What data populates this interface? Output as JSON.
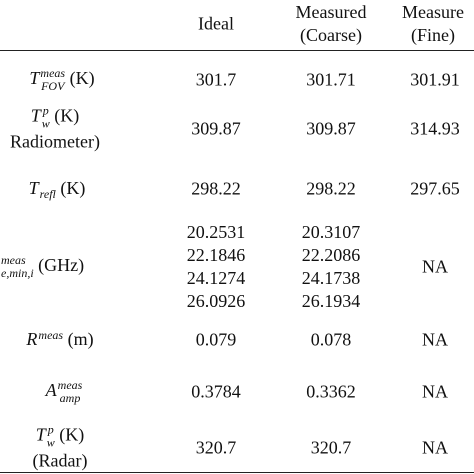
{
  "table": {
    "columns": [
      "Ideal",
      [
        "Measured",
        "(Coarse)"
      ],
      [
        "Measure",
        "(Fine)"
      ]
    ],
    "rows": [
      {
        "label": {
          "base": "T",
          "sup": "meas",
          "sub": "FOV",
          "unit": "(K)"
        },
        "cells": [
          [
            "301.7"
          ],
          [
            "301.71"
          ],
          [
            "301.91"
          ]
        ]
      },
      {
        "label": {
          "base": "T",
          "sup": "p",
          "sub": "w",
          "unit": "(K)",
          "note": "Radiometer)"
        },
        "cells": [
          [
            "309.87"
          ],
          [
            "309.87"
          ],
          [
            "314.93"
          ]
        ]
      },
      {
        "label": {
          "base": "T",
          "sub": "refl",
          "unit": "(K)"
        },
        "cells": [
          [
            "298.22"
          ],
          [
            "298.22"
          ],
          [
            "297.65"
          ]
        ]
      },
      {
        "label": {
          "sup": "meas",
          "sub": "e,min,i",
          "unit": "(GHz)"
        },
        "cells": [
          [
            "20.2531",
            "22.1846",
            "24.1274",
            "26.0926"
          ],
          [
            "20.3107",
            "22.2086",
            "24.1738",
            "26.1934"
          ],
          [
            "NA"
          ]
        ]
      },
      {
        "label": {
          "base": "R",
          "sup": "meas",
          "unit": "(m)"
        },
        "cells": [
          [
            "0.079"
          ],
          [
            "0.078"
          ],
          [
            "NA"
          ]
        ]
      },
      {
        "label": {
          "base": "A",
          "sup": "meas",
          "sub": "amp"
        },
        "cells": [
          [
            "0.3784"
          ],
          [
            "0.3362"
          ],
          [
            "NA"
          ]
        ]
      },
      {
        "label": {
          "base": "T",
          "sup": "p",
          "sub": "w",
          "unit": "(K)",
          "note": "(Radar)"
        },
        "cells": [
          [
            "320.7"
          ],
          [
            "320.7"
          ],
          [
            "NA"
          ]
        ]
      }
    ]
  }
}
